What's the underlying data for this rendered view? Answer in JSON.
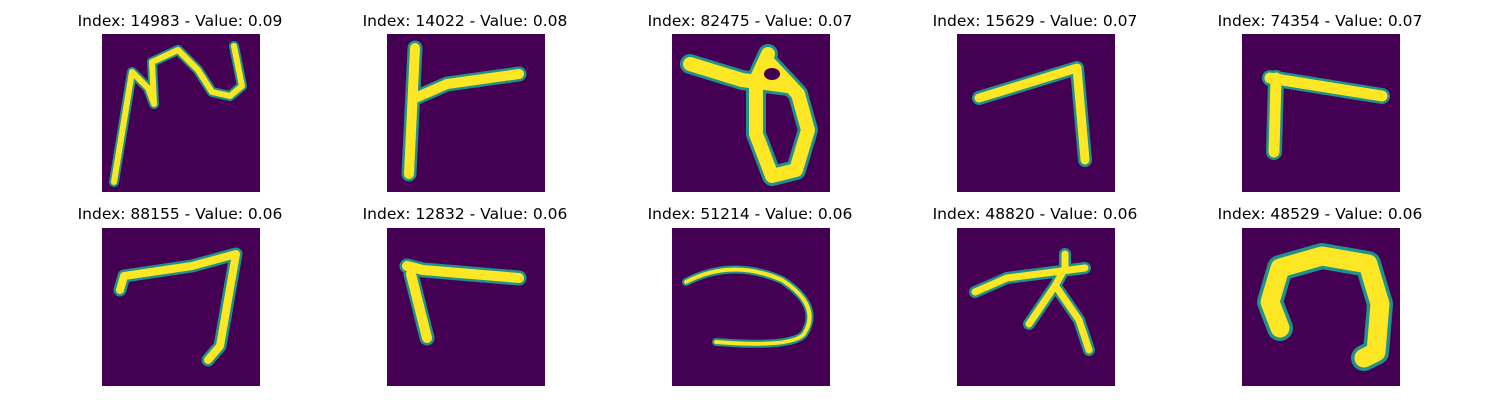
{
  "figure": {
    "background": "#ffffff",
    "colormap": {
      "low": "#440154",
      "mid": "#21918c",
      "high": "#fde725"
    }
  },
  "panels": [
    {
      "title": "Index: 14983 - Value: 0.09",
      "index": 14983,
      "value": 0.09
    },
    {
      "title": "Index: 14022 - Value: 0.08",
      "index": 14022,
      "value": 0.08
    },
    {
      "title": "Index: 82475 - Value: 0.07",
      "index": 82475,
      "value": 0.07
    },
    {
      "title": "Index: 15629 - Value: 0.07",
      "index": 15629,
      "value": 0.07
    },
    {
      "title": "Index: 74354 - Value: 0.07",
      "index": 74354,
      "value": 0.07
    },
    {
      "title": "Index: 88155 - Value: 0.06",
      "index": 88155,
      "value": 0.06
    },
    {
      "title": "Index: 12832 - Value: 0.06",
      "index": 12832,
      "value": 0.06
    },
    {
      "title": "Index: 51214 - Value: 0.06",
      "index": 51214,
      "value": 0.06
    },
    {
      "title": "Index: 48820 - Value: 0.06",
      "index": 48820,
      "value": 0.06
    },
    {
      "title": "Index: 48529 - Value: 0.06",
      "index": 48529,
      "value": 0.06
    }
  ]
}
